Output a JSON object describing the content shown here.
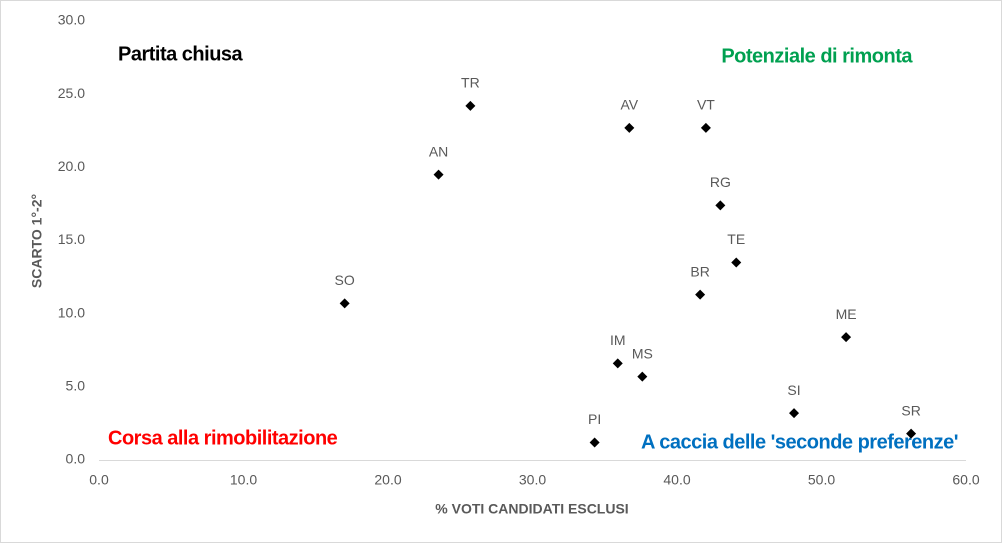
{
  "chart_data": {
    "type": "scatter",
    "xlabel": "% VOTI CANDIDATI  ESCLUSI",
    "ylabel": "SCARTO 1°-2°",
    "labels": [
      "SO",
      "AN",
      "TR",
      "AV",
      "VT",
      "RG",
      "TE",
      "BR",
      "ME",
      "IM",
      "MS",
      "SI",
      "SR",
      "PI"
    ],
    "x": [
      17.0,
      23.5,
      25.7,
      36.7,
      42.0,
      43.0,
      44.1,
      41.6,
      51.7,
      35.9,
      37.6,
      48.1,
      56.2,
      34.3
    ],
    "values": [
      10.7,
      19.5,
      24.2,
      22.7,
      22.7,
      17.4,
      13.5,
      11.3,
      8.4,
      6.6,
      5.7,
      3.2,
      1.8,
      1.2
    ],
    "color": "#000000",
    "xlim": [
      0,
      60
    ],
    "xticks": [
      {
        "value": 0,
        "label": "0.0"
      },
      {
        "value": 10,
        "label": "10.0"
      },
      {
        "value": 20,
        "label": "20.0"
      },
      {
        "value": 30,
        "label": "30.0"
      },
      {
        "value": 40,
        "label": "40.0"
      },
      {
        "value": 50,
        "label": "50.0"
      },
      {
        "value": 60,
        "label": "60.0"
      }
    ],
    "ylim": [
      0,
      30
    ],
    "yticks": [
      {
        "value": 0,
        "label": "0.0"
      },
      {
        "value": 5,
        "label": "5.0"
      },
      {
        "value": 10,
        "label": "10.0"
      },
      {
        "value": 15,
        "label": "15.0"
      },
      {
        "value": 20,
        "label": "20.0"
      },
      {
        "value": 25,
        "label": "25.0"
      },
      {
        "value": 30,
        "label": "30.0"
      }
    ],
    "annotations": [
      {
        "text": "Partita chiusa",
        "color": "#000000"
      },
      {
        "text": "Potenziale di rimonta",
        "color": "#00a050"
      },
      {
        "text": "Corsa alla rimobilitazione",
        "color": "#ff0000"
      },
      {
        "text": "A caccia delle 'seconde preferenze'",
        "color": "#0070c0"
      }
    ]
  }
}
